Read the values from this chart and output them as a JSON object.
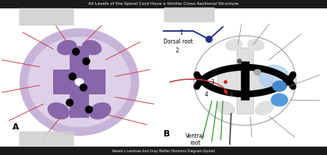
{
  "title": "All Levels of the Spinal Cord Have a Similar Cross-Sectional Structure",
  "footer": "Rexed s Laminae And Gray Matter Divisions Diagram Quizlet",
  "bg_color": "#ffffff",
  "top_bar_color": "#1a1a1a",
  "bottom_bar_color": "#1a1a1a",
  "top_bar_text": "All Levels of the Spinal Cord Have a Similar Cross-Sectional Structure",
  "bottom_bar_text": "Rexed s Laminae And Gray Matter Divisions Diagram Quizlet",
  "label_A": "A",
  "label_B": "B",
  "dorsal_root_text": "Dorsal root",
  "ventral_root_text": "Ventral\nroot"
}
